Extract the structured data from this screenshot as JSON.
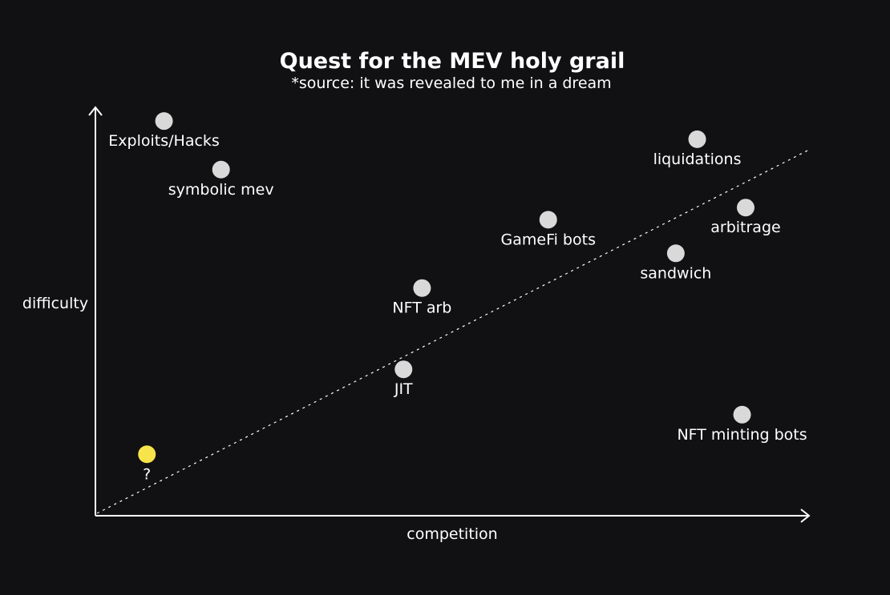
{
  "chart_data": {
    "type": "scatter",
    "title": "Quest for the MEV holy grail",
    "subtitle": "*source: it was revealed to me in a dream",
    "xlabel": "competition",
    "ylabel": "difficulty",
    "xlim": [
      0,
      100
    ],
    "ylim": [
      0,
      100
    ],
    "grid": false,
    "trendline": {
      "from": [
        0,
        0
      ],
      "to": [
        100,
        90
      ]
    },
    "points": [
      {
        "label": "Exploits/Hacks",
        "x": 9.4,
        "y": 97,
        "color": "#d9d9d9"
      },
      {
        "label": "symbolic mev",
        "x": 17.4,
        "y": 85,
        "color": "#d9d9d9"
      },
      {
        "label": "liquidations",
        "x": 84.2,
        "y": 92.5,
        "color": "#d9d9d9"
      },
      {
        "label": "arbitrage",
        "x": 91,
        "y": 75.6,
        "color": "#d9d9d9"
      },
      {
        "label": "GameFi bots",
        "x": 63.3,
        "y": 72.6,
        "color": "#d9d9d9"
      },
      {
        "label": "sandwich",
        "x": 81.2,
        "y": 64.3,
        "color": "#d9d9d9"
      },
      {
        "label": "NFT arb",
        "x": 45.6,
        "y": 55.7,
        "color": "#d9d9d9"
      },
      {
        "label": "JIT",
        "x": 43,
        "y": 35.6,
        "color": "#d9d9d9"
      },
      {
        "label": "NFT minting bots",
        "x": 90.5,
        "y": 24.4,
        "color": "#d9d9d9"
      },
      {
        "label": "?",
        "x": 7,
        "y": 14.6,
        "color": "#f7e44a"
      }
    ]
  }
}
